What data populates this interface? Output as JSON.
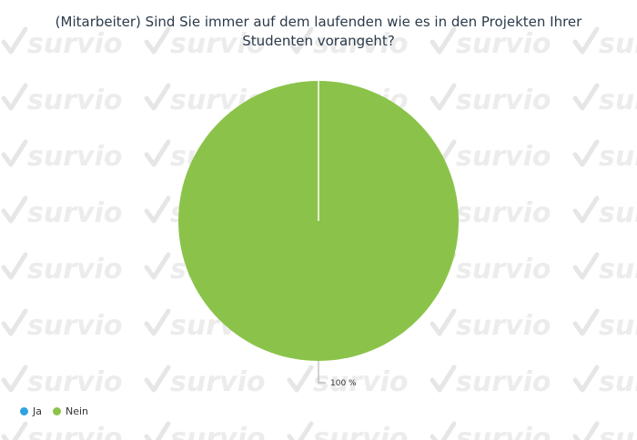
{
  "watermark": {
    "text": "survio"
  },
  "chart_data": {
    "type": "pie",
    "title_lines": [
      "(Mitarbeiter) Sind Sie immer auf dem laufenden wie es in den Projekten Ihrer",
      "Studenten vorangeht?"
    ],
    "categories": [
      "Ja",
      "Nein"
    ],
    "values": [
      0,
      100
    ],
    "colors": [
      "#2fa3df",
      "#8bc34a"
    ],
    "data_labels": [
      "",
      "100 %"
    ],
    "legend_position": "bottom-left"
  }
}
